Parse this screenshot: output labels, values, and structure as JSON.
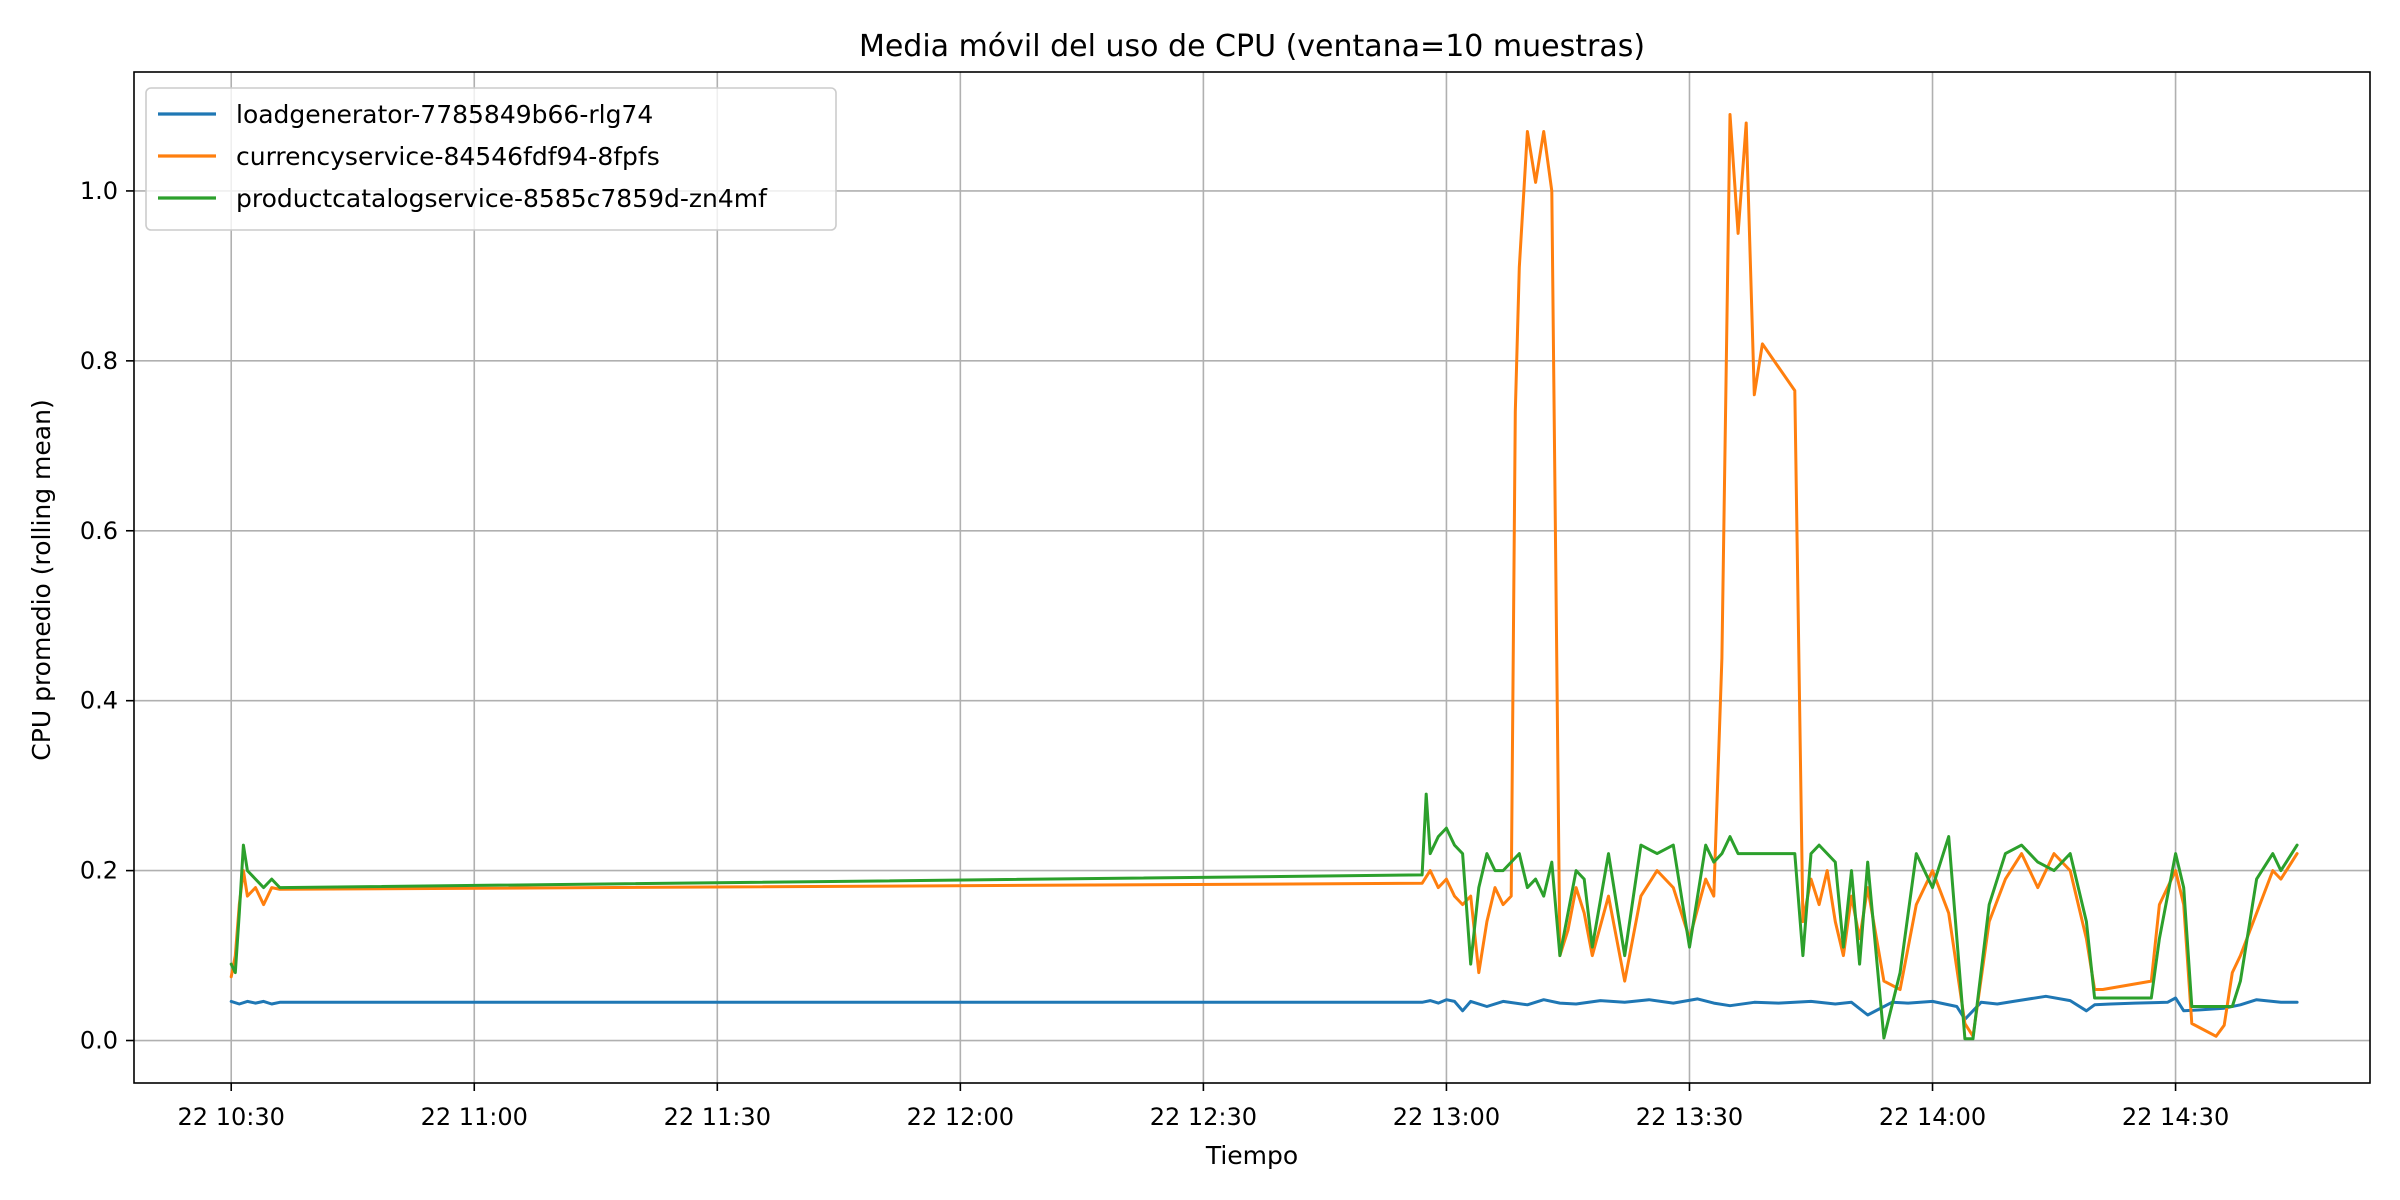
{
  "chart_data": {
    "type": "line",
    "title": "Media móvil del uso de CPU (ventana=10 muestras)",
    "xlabel": "Tiempo",
    "ylabel": "CPU promedio (rolling mean)",
    "x_axis": "time",
    "xlim": [
      "22 10:18",
      "22 14:54"
    ],
    "ylim": [
      -0.05,
      1.14
    ],
    "x_ticks": [
      "22 10:30",
      "22 11:00",
      "22 11:30",
      "22 12:00",
      "22 12:30",
      "22 13:00",
      "22 13:30",
      "22 14:00",
      "22 14:30"
    ],
    "y_ticks": [
      "0.0",
      "0.2",
      "0.4",
      "0.6",
      "0.8",
      "1.0"
    ],
    "grid": true,
    "legend_position": "upper-left",
    "series": [
      {
        "name": "loadgenerator-7785849b66-rlg74",
        "color": "#1f77b4",
        "x": [
          "10:30",
          "10:31",
          "10:32",
          "10:33",
          "10:34",
          "10:35",
          "10:36",
          "12:57",
          "12:58",
          "12:59",
          "13:00",
          "13:01",
          "13:02",
          "13:03",
          "13:05",
          "13:07",
          "13:10",
          "13:12",
          "13:14",
          "13:16",
          "13:19",
          "13:22",
          "13:25",
          "13:28",
          "13:31",
          "13:33",
          "13:35",
          "13:38",
          "13:41",
          "13:45",
          "13:48",
          "13:50",
          "13:52",
          "13:55",
          "13:57",
          "14:00",
          "14:03",
          "14:04",
          "14:06",
          "14:08",
          "14:10",
          "14:14",
          "14:17",
          "14:19",
          "14:20",
          "14:22",
          "14:25",
          "14:29",
          "14:30",
          "14:31",
          "14:33",
          "14:36",
          "14:38",
          "14:40",
          "14:43",
          "14:45"
        ],
        "y": [
          0.046,
          0.043,
          0.046,
          0.044,
          0.046,
          0.043,
          0.045,
          0.045,
          0.047,
          0.044,
          0.048,
          0.046,
          0.035,
          0.046,
          0.04,
          0.046,
          0.042,
          0.048,
          0.044,
          0.043,
          0.047,
          0.045,
          0.048,
          0.044,
          0.049,
          0.044,
          0.041,
          0.045,
          0.044,
          0.046,
          0.043,
          0.045,
          0.03,
          0.045,
          0.044,
          0.046,
          0.04,
          0.025,
          0.045,
          0.043,
          0.046,
          0.052,
          0.047,
          0.035,
          0.042,
          0.043,
          0.044,
          0.045,
          0.05,
          0.035,
          0.036,
          0.038,
          0.042,
          0.048,
          0.045,
          0.045
        ]
      },
      {
        "name": "currencyservice-84546fdf94-8fpfs",
        "color": "#ff7f0e",
        "x": [
          "10:30",
          "10:30.5",
          "10:31",
          "10:31.5",
          "10:32",
          "10:33",
          "10:34",
          "10:35",
          "10:36",
          "12:57",
          "12:58",
          "12:59",
          "13:00",
          "13:01",
          "13:02",
          "13:03",
          "13:04",
          "13:05",
          "13:06",
          "13:07",
          "13:08",
          "13:08.5",
          "13:09",
          "13:10",
          "13:11",
          "13:12",
          "13:13",
          "13:14",
          "13:15",
          "13:16",
          "13:17",
          "13:18",
          "13:20",
          "13:22",
          "13:24",
          "13:26",
          "13:28",
          "13:30",
          "13:32",
          "13:33",
          "13:34",
          "13:35",
          "13:36",
          "13:37",
          "13:38",
          "13:39",
          "13:43",
          "13:44",
          "13:45",
          "13:46",
          "13:47",
          "13:48",
          "13:49",
          "13:50",
          "13:51",
          "13:52",
          "13:54",
          "13:56",
          "13:58",
          "14:00",
          "14:02",
          "14:04",
          "14:05",
          "14:07",
          "14:09",
          "14:11",
          "14:13",
          "14:15",
          "14:17",
          "14:19",
          "14:20",
          "14:21",
          "14:27",
          "14:28",
          "14:30",
          "14:31",
          "14:32",
          "14:35",
          "14:36",
          "14:37",
          "14:38",
          "14:40",
          "14:42",
          "14:43",
          "14:45"
        ],
        "y": [
          0.075,
          0.1,
          0.16,
          0.2,
          0.17,
          0.18,
          0.16,
          0.18,
          0.178,
          0.185,
          0.2,
          0.18,
          0.19,
          0.17,
          0.16,
          0.17,
          0.08,
          0.14,
          0.18,
          0.16,
          0.17,
          0.74,
          0.91,
          1.07,
          1.01,
          1.07,
          1.0,
          0.1,
          0.13,
          0.18,
          0.15,
          0.1,
          0.17,
          0.07,
          0.17,
          0.2,
          0.18,
          0.12,
          0.19,
          0.17,
          0.45,
          1.09,
          0.95,
          1.08,
          0.76,
          0.82,
          0.765,
          0.14,
          0.19,
          0.16,
          0.2,
          0.14,
          0.1,
          0.17,
          0.12,
          0.18,
          0.07,
          0.06,
          0.16,
          0.2,
          0.15,
          0.02,
          0.005,
          0.14,
          0.19,
          0.22,
          0.18,
          0.22,
          0.2,
          0.12,
          0.06,
          0.06,
          0.07,
          0.16,
          0.2,
          0.16,
          0.02,
          0.005,
          0.018,
          0.08,
          0.1,
          0.15,
          0.2,
          0.19,
          0.22
        ]
      },
      {
        "name": "productcatalogservice-8585c7859d-zn4mf",
        "color": "#2ca02c",
        "x": [
          "10:30",
          "10:30.5",
          "10:31",
          "10:31.5",
          "10:32",
          "10:33",
          "10:34",
          "10:35",
          "10:36",
          "12:57",
          "12:57.5",
          "12:58",
          "12:59",
          "13:00",
          "13:01",
          "13:02",
          "13:03",
          "13:04",
          "13:05",
          "13:06",
          "13:07",
          "13:08",
          "13:09",
          "13:10",
          "13:11",
          "13:12",
          "13:13",
          "13:14",
          "13:15",
          "13:16",
          "13:17",
          "13:18",
          "13:20",
          "13:22",
          "13:24",
          "13:26",
          "13:28",
          "13:30",
          "13:32",
          "13:33",
          "13:34",
          "13:35",
          "13:36",
          "13:37",
          "13:38",
          "13:39",
          "13:43",
          "13:44",
          "13:45",
          "13:46",
          "13:47",
          "13:48",
          "13:49",
          "13:50",
          "13:51",
          "13:52",
          "13:54",
          "13:56",
          "13:58",
          "14:00",
          "14:02",
          "14:04",
          "14:05",
          "14:07",
          "14:09",
          "14:11",
          "14:13",
          "14:15",
          "14:17",
          "14:19",
          "14:20",
          "14:21",
          "14:27",
          "14:28",
          "14:30",
          "14:31",
          "14:32",
          "14:35",
          "14:36",
          "14:37",
          "14:38",
          "14:40",
          "14:42",
          "14:43",
          "14:45"
        ],
        "y": [
          0.09,
          0.08,
          0.15,
          0.23,
          0.2,
          0.19,
          0.18,
          0.19,
          0.18,
          0.195,
          0.29,
          0.22,
          0.24,
          0.25,
          0.23,
          0.22,
          0.09,
          0.18,
          0.22,
          0.2,
          0.2,
          0.21,
          0.22,
          0.18,
          0.19,
          0.17,
          0.21,
          0.1,
          0.15,
          0.2,
          0.19,
          0.11,
          0.22,
          0.1,
          0.23,
          0.22,
          0.23,
          0.11,
          0.23,
          0.21,
          0.22,
          0.24,
          0.22,
          0.22,
          0.22,
          0.22,
          0.22,
          0.1,
          0.22,
          0.23,
          0.22,
          0.21,
          0.11,
          0.2,
          0.09,
          0.21,
          0.003,
          0.08,
          0.22,
          0.18,
          0.24,
          0.002,
          0.002,
          0.16,
          0.22,
          0.23,
          0.21,
          0.2,
          0.22,
          0.14,
          0.05,
          0.05,
          0.05,
          0.12,
          0.22,
          0.18,
          0.04,
          0.04,
          0.04,
          0.04,
          0.07,
          0.19,
          0.22,
          0.2,
          0.23
        ]
      }
    ]
  }
}
